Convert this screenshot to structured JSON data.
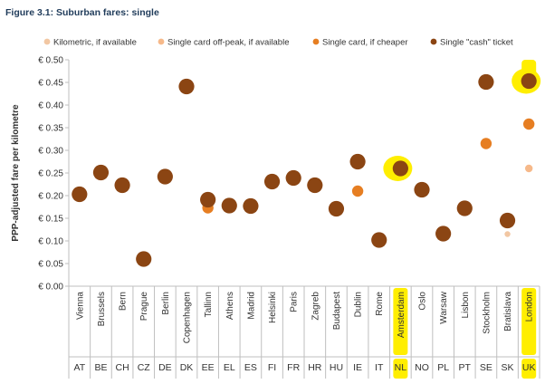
{
  "figure_title": "Figure 3.1: Suburban fares: single",
  "colors": {
    "kilometric": "#f2c7a3",
    "offpeak": "#f6b98a",
    "cheaper": "#e67e22",
    "cash": "#8b4513",
    "highlight": "#ffee00"
  },
  "highlighted": [
    "NL",
    "UK"
  ],
  "chart_data": {
    "type": "scatter",
    "title": "",
    "ylabel": "PPP-adjusted fare per kilometre",
    "ylim": [
      0,
      0.5
    ],
    "yticks": [
      "€ 0.00",
      "€ 0.05",
      "€ 0.10",
      "€ 0.15",
      "€ 0.20",
      "€ 0.25",
      "€ 0.30",
      "€ 0.35",
      "€ 0.40",
      "€ 0.45",
      "€ 0.50"
    ],
    "ytick_values": [
      0,
      0.05,
      0.1,
      0.15,
      0.2,
      0.25,
      0.3,
      0.35,
      0.4,
      0.45,
      0.5
    ],
    "categories": [
      "Vienna",
      "Brussels",
      "Bern",
      "Prague",
      "Berlin",
      "Copenhagen",
      "Tallinn",
      "Athens",
      "Madrid",
      "Helsinki",
      "Paris",
      "Zagreb",
      "Budapest",
      "Dublin",
      "Rome",
      "Amsterdam",
      "Oslo",
      "Warsaw",
      "Lisbon",
      "Stockholm",
      "Bratislava",
      "London"
    ],
    "country_codes": [
      "AT",
      "BE",
      "CH",
      "CZ",
      "DE",
      "DK",
      "EE",
      "EL",
      "ES",
      "FI",
      "FR",
      "HR",
      "HU",
      "IE",
      "IT",
      "NL",
      "NO",
      "PL",
      "PT",
      "SE",
      "SK",
      "UK"
    ],
    "legend_position": "top",
    "grid": false,
    "series": [
      {
        "name": "Kilometric, if available",
        "key": "kilometric",
        "values": [
          null,
          null,
          null,
          null,
          null,
          null,
          null,
          null,
          null,
          null,
          null,
          null,
          null,
          null,
          null,
          null,
          null,
          null,
          null,
          null,
          0.115,
          null
        ]
      },
      {
        "name": "Single card off-peak, if available",
        "key": "offpeak",
        "values": [
          null,
          null,
          null,
          null,
          null,
          null,
          null,
          null,
          null,
          null,
          null,
          null,
          null,
          null,
          null,
          null,
          null,
          null,
          null,
          null,
          null,
          0.26
        ]
      },
      {
        "name": "Single card, if cheaper",
        "key": "cheaper",
        "values": [
          null,
          null,
          null,
          null,
          null,
          null,
          0.173,
          null,
          null,
          null,
          null,
          null,
          null,
          0.21,
          null,
          null,
          null,
          null,
          null,
          0.315,
          null,
          0.358
        ]
      },
      {
        "name": "Single \"cash\" ticket",
        "key": "cash",
        "values": [
          0.203,
          0.251,
          0.223,
          0.06,
          0.242,
          0.441,
          0.191,
          0.178,
          0.177,
          0.231,
          0.239,
          0.223,
          0.171,
          0.275,
          0.102,
          0.26,
          0.213,
          0.116,
          0.172,
          0.451,
          0.145,
          0.453
        ]
      }
    ]
  }
}
